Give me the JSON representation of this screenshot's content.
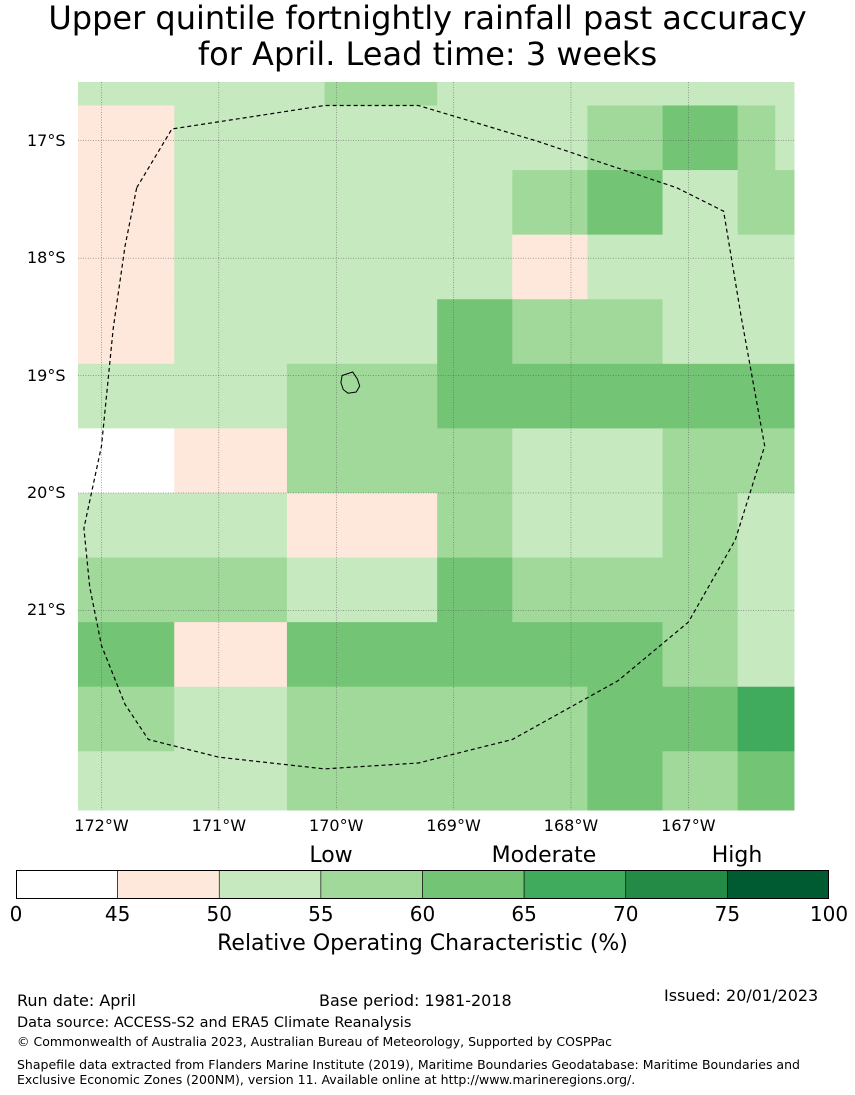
{
  "title_line1": "Upper quintile fortnightly rainfall past accuracy",
  "title_line2": "for April. Lead time: 3 weeks",
  "map": {
    "lon_min": -172.2,
    "lon_max": -166.1,
    "lat_max": -16.5,
    "lat_min": -22.7,
    "cell_size_deg": 0.5556,
    "lat_ticks": [
      -17,
      -18,
      -19,
      -20,
      -21
    ],
    "lat_tick_labels": [
      "17°S",
      "18°S",
      "19°S",
      "20°S",
      "21°S"
    ],
    "lon_ticks": [
      -172,
      -171,
      -170,
      -169,
      -168,
      -167
    ],
    "lon_tick_labels": [
      "172°W",
      "171°W",
      "170°W",
      "169°W",
      "168°W",
      "167°W"
    ],
    "cell_classes": [
      [
        2,
        2,
        2,
        2,
        2,
        2,
        3,
        3,
        3,
        2,
        2,
        2,
        2,
        2,
        2,
        2,
        2,
        2,
        2
      ],
      [
        1,
        1,
        2,
        2,
        2,
        2,
        2,
        2,
        2,
        2,
        2,
        2,
        2,
        3,
        3,
        4,
        4,
        3,
        2
      ],
      [
        1,
        1,
        2,
        2,
        2,
        2,
        2,
        2,
        2,
        2,
        2,
        3,
        3,
        4,
        4,
        2,
        2,
        3,
        3
      ],
      [
        1,
        1,
        2,
        2,
        2,
        2,
        2,
        2,
        2,
        2,
        2,
        1,
        1,
        2,
        2,
        2,
        2,
        2,
        2
      ],
      [
        1,
        1,
        2,
        2,
        2,
        2,
        2,
        2,
        2,
        4,
        4,
        3,
        3,
        3,
        3,
        2,
        2,
        2,
        2
      ],
      [
        2,
        2,
        2,
        2,
        2,
        3,
        3,
        3,
        3,
        4,
        4,
        4,
        4,
        4,
        4,
        4,
        4,
        4,
        4
      ],
      [
        0,
        0,
        1,
        1,
        1,
        3,
        3,
        3,
        3,
        3,
        3,
        2,
        2,
        2,
        2,
        3,
        3,
        3,
        3
      ],
      [
        2,
        2,
        2,
        2,
        2,
        1,
        1,
        1,
        1,
        3,
        3,
        2,
        2,
        2,
        2,
        3,
        3,
        2,
        2
      ],
      [
        3,
        3,
        3,
        3,
        3,
        2,
        2,
        2,
        2,
        4,
        4,
        3,
        3,
        3,
        3,
        3,
        3,
        2,
        2
      ],
      [
        4,
        4,
        1,
        1,
        1,
        4,
        4,
        4,
        4,
        4,
        4,
        4,
        4,
        4,
        4,
        3,
        3,
        2,
        2
      ],
      [
        3,
        3,
        2,
        2,
        2,
        3,
        3,
        3,
        3,
        3,
        3,
        3,
        3,
        4,
        4,
        4,
        4,
        5,
        5
      ],
      [
        2,
        2,
        2,
        2,
        2,
        3,
        3,
        3,
        3,
        3,
        3,
        3,
        3,
        4,
        4,
        3,
        3,
        4,
        4
      ]
    ],
    "eez_boundary": [
      [
        -171.7,
        -17.4
      ],
      [
        -171.4,
        -16.9
      ],
      [
        -170.1,
        -16.7
      ],
      [
        -169.3,
        -16.7
      ],
      [
        -168.3,
        -17.0
      ],
      [
        -167.1,
        -17.4
      ],
      [
        -166.7,
        -17.6
      ],
      [
        -166.55,
        -18.5
      ],
      [
        -166.35,
        -19.6
      ],
      [
        -166.6,
        -20.4
      ],
      [
        -167.0,
        -21.1
      ],
      [
        -167.6,
        -21.6
      ],
      [
        -168.5,
        -22.1
      ],
      [
        -169.3,
        -22.3
      ],
      [
        -170.1,
        -22.35
      ],
      [
        -171.0,
        -22.25
      ],
      [
        -171.6,
        -22.1
      ],
      [
        -171.8,
        -21.8
      ],
      [
        -172.0,
        -21.3
      ],
      [
        -172.1,
        -20.8
      ],
      [
        -172.15,
        -20.3
      ],
      [
        -172.0,
        -19.6
      ],
      [
        -171.9,
        -18.6
      ],
      [
        -171.8,
        -17.9
      ],
      [
        -171.7,
        -17.4
      ]
    ],
    "island_outline": [
      [
        -169.95,
        -19.0
      ],
      [
        -169.86,
        -18.97
      ],
      [
        -169.82,
        -19.03
      ],
      [
        -169.8,
        -19.09
      ],
      [
        -169.83,
        -19.14
      ],
      [
        -169.9,
        -19.15
      ],
      [
        -169.94,
        -19.12
      ],
      [
        -169.96,
        -19.06
      ],
      [
        -169.95,
        -19.0
      ]
    ]
  },
  "colorbar": {
    "bins": [
      {
        "from": 0,
        "to": 45,
        "color": "#ffffff"
      },
      {
        "from": 45,
        "to": 50,
        "color": "#fee8dc"
      },
      {
        "from": 50,
        "to": 55,
        "color": "#c7e9c0"
      },
      {
        "from": 55,
        "to": 60,
        "color": "#a1d99b"
      },
      {
        "from": 60,
        "to": 65,
        "color": "#74c476"
      },
      {
        "from": 65,
        "to": 70,
        "color": "#41ab5d"
      },
      {
        "from": 70,
        "to": 75,
        "color": "#238b45"
      },
      {
        "from": 75,
        "to": 100,
        "color": "#005a32"
      }
    ],
    "tick_labels": [
      "0",
      "45",
      "50",
      "55",
      "60",
      "65",
      "70",
      "75",
      "100"
    ],
    "category_low": "Low",
    "category_moderate": "Moderate",
    "category_high": "High",
    "axis_label": "Relative Operating Characteristic (%)"
  },
  "footer": {
    "run_date": "Run date: April",
    "base_period": "Base period: 1981-2018",
    "issued": "Issued: 20/01/2023",
    "data_source": "Data source: ACCESS-S2 and ERA5 Climate Reanalysis",
    "copyright": "© Commonwealth of Australia 2023, Australian Bureau of Meteorology, Supported by COSPPac",
    "shapefile_note": "Shapefile data extracted from Flanders Marine Institute (2019), Maritime Boundaries Geodatabase: Maritime Boundaries and Exclusive Economic Zones (200NM), version 11. Available online at http://www.marineregions.org/."
  }
}
